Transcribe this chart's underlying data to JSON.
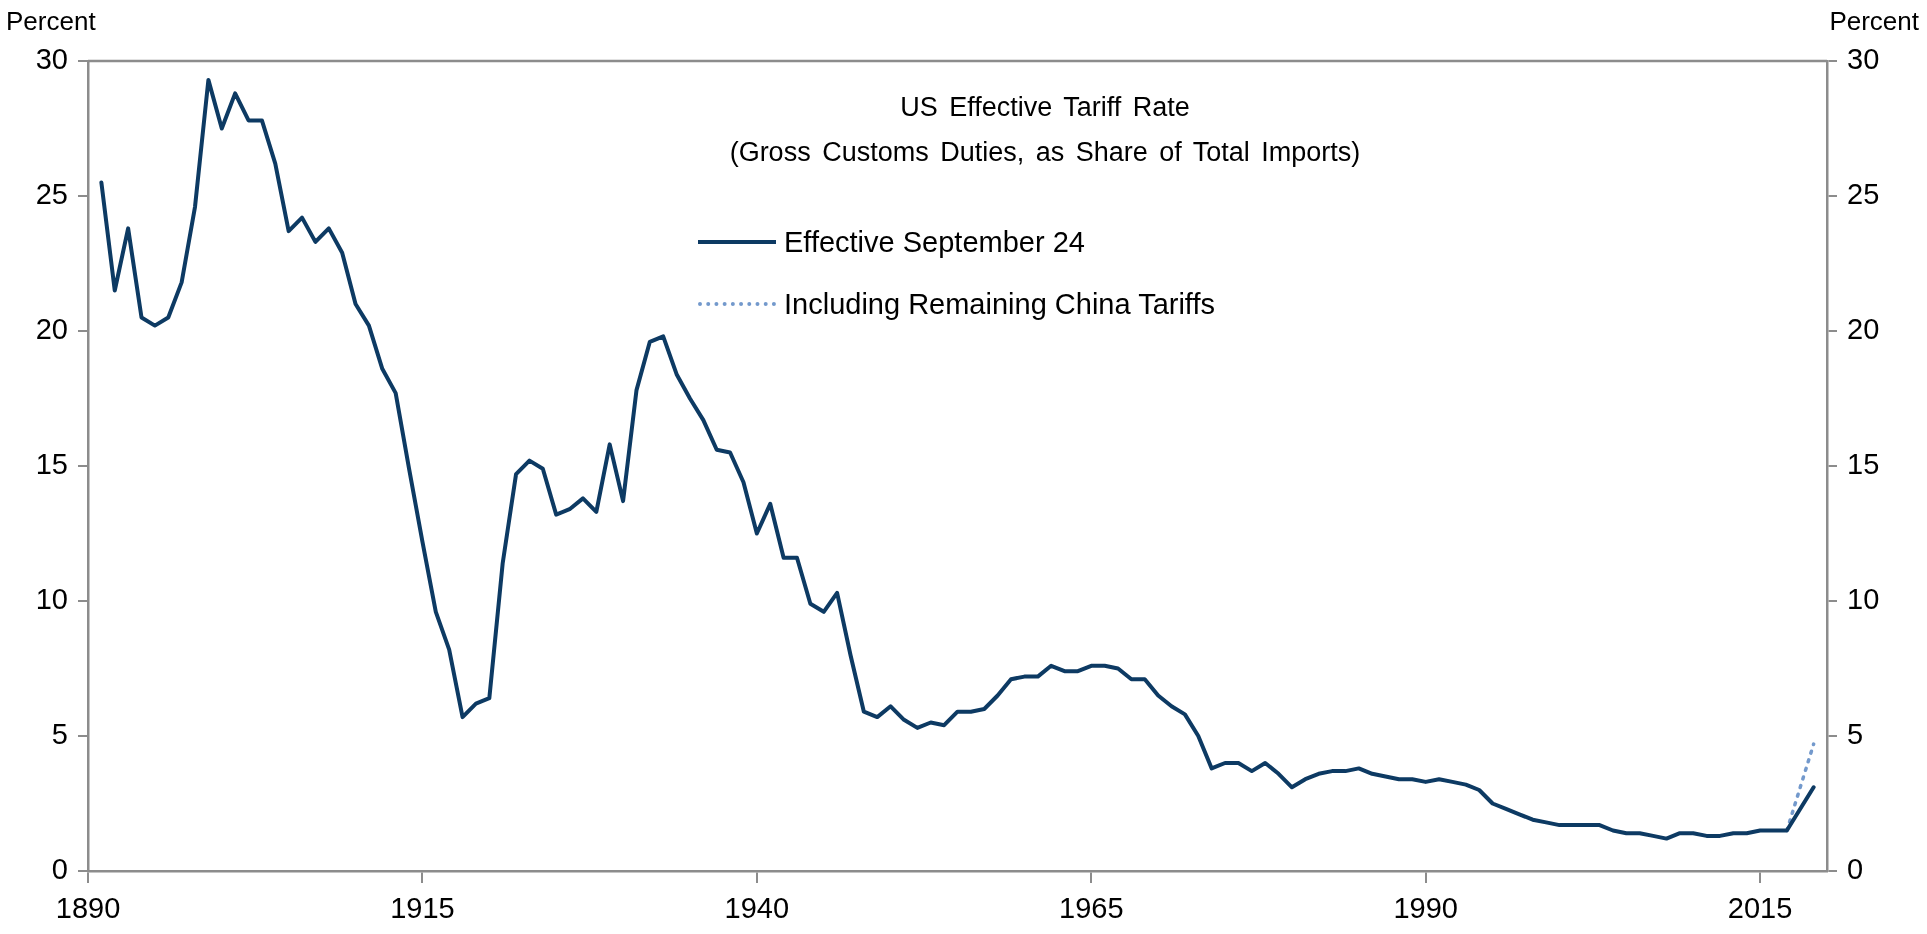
{
  "chart_data": {
    "type": "line",
    "title": "US Effective Tariff Rate",
    "subtitle": "(Gross Customs Duties, as Share of Total Imports)",
    "ylabel": "Percent",
    "y2label": "Percent",
    "xlim": [
      1890,
      2020
    ],
    "xticks": [
      1890,
      1915,
      1940,
      1965,
      1990,
      2015
    ],
    "ylim": [
      0,
      30
    ],
    "yticks": [
      0,
      5,
      10,
      15,
      20,
      25,
      30
    ],
    "y2lim": [
      0,
      30
    ],
    "y2ticks": [
      0,
      5,
      10,
      15,
      20,
      25,
      30
    ],
    "grid": false,
    "legend": "top",
    "series": [
      {
        "name": "Effective September 24",
        "color": "#0d3a63",
        "line_style": "solid",
        "x": [
          1891,
          1892,
          1893,
          1894,
          1895,
          1896,
          1897,
          1898,
          1899,
          1900,
          1901,
          1902,
          1903,
          1904,
          1905,
          1906,
          1907,
          1908,
          1909,
          1910,
          1911,
          1912,
          1913,
          1914,
          1915,
          1916,
          1917,
          1918,
          1919,
          1920,
          1921,
          1922,
          1923,
          1924,
          1925,
          1926,
          1927,
          1928,
          1929,
          1930,
          1931,
          1932,
          1933,
          1934,
          1935,
          1936,
          1937,
          1938,
          1939,
          1940,
          1941,
          1942,
          1943,
          1944,
          1945,
          1946,
          1947,
          1948,
          1949,
          1950,
          1951,
          1952,
          1953,
          1954,
          1955,
          1956,
          1957,
          1958,
          1959,
          1960,
          1961,
          1962,
          1963,
          1964,
          1965,
          1966,
          1967,
          1968,
          1969,
          1970,
          1971,
          1972,
          1973,
          1974,
          1975,
          1976,
          1977,
          1978,
          1979,
          1980,
          1981,
          1982,
          1983,
          1984,
          1985,
          1986,
          1987,
          1988,
          1989,
          1990,
          1991,
          1992,
          1993,
          1994,
          1995,
          1996,
          1997,
          1998,
          1999,
          2000,
          2001,
          2002,
          2003,
          2004,
          2005,
          2006,
          2007,
          2008,
          2009,
          2010,
          2011,
          2012,
          2013,
          2014,
          2015,
          2016,
          2017,
          2019
        ],
        "values": [
          25.5,
          21.5,
          23.8,
          20.5,
          20.2,
          20.5,
          21.8,
          24.6,
          29.3,
          27.5,
          28.8,
          27.8,
          27.8,
          26.2,
          23.7,
          24.2,
          23.3,
          23.8,
          22.9,
          21.0,
          20.2,
          18.6,
          17.7,
          14.9,
          12.2,
          9.6,
          8.2,
          5.7,
          6.2,
          6.4,
          11.4,
          14.7,
          15.2,
          14.9,
          13.2,
          13.4,
          13.8,
          13.3,
          15.8,
          13.7,
          17.8,
          19.6,
          19.8,
          18.4,
          17.5,
          16.7,
          15.6,
          15.5,
          14.4,
          12.5,
          13.6,
          11.6,
          11.6,
          9.9,
          9.6,
          10.3,
          8.0,
          5.9,
          5.7,
          6.1,
          5.6,
          5.3,
          5.5,
          5.4,
          5.9,
          5.9,
          6.0,
          6.5,
          7.1,
          7.2,
          7.2,
          7.6,
          7.4,
          7.4,
          7.6,
          7.6,
          7.5,
          7.1,
          7.1,
          6.5,
          6.1,
          5.8,
          5.0,
          3.8,
          4.0,
          4.0,
          3.7,
          4.0,
          3.6,
          3.1,
          3.4,
          3.6,
          3.7,
          3.7,
          3.8,
          3.6,
          3.5,
          3.4,
          3.4,
          3.3,
          3.4,
          3.3,
          3.2,
          3.0,
          2.5,
          2.3,
          2.1,
          1.9,
          1.8,
          1.7,
          1.7,
          1.7,
          1.7,
          1.5,
          1.4,
          1.4,
          1.3,
          1.2,
          1.4,
          1.4,
          1.3,
          1.3,
          1.4,
          1.4,
          1.5,
          1.5,
          1.5,
          3.1
        ]
      },
      {
        "name": "Including Remaining China Tariffs",
        "color": "#7399cc",
        "line_style": "dotted",
        "x": [
          2017,
          2019
        ],
        "values": [
          1.5,
          4.7
        ]
      }
    ]
  }
}
